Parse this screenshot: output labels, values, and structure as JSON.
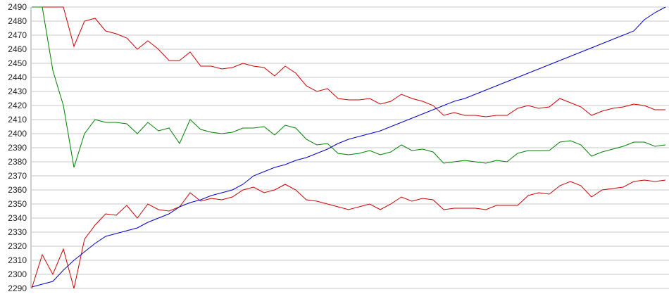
{
  "chart_data": {
    "type": "line",
    "title": "",
    "xlabel": "",
    "ylabel": "",
    "ylim": [
      2290,
      2490
    ],
    "yticks": [
      2290,
      2300,
      2310,
      2320,
      2330,
      2340,
      2350,
      2360,
      2370,
      2380,
      2390,
      2400,
      2410,
      2420,
      2430,
      2440,
      2450,
      2460,
      2470,
      2480,
      2490
    ],
    "grid": true,
    "x": [
      0,
      1,
      2,
      3,
      4,
      5,
      6,
      7,
      8,
      9,
      10,
      11,
      12,
      13,
      14,
      15,
      16,
      17,
      18,
      19,
      20,
      21,
      22,
      23,
      24,
      25,
      26,
      27,
      28,
      29,
      30,
      31,
      32,
      33,
      34,
      35,
      36,
      37,
      38,
      39,
      40,
      41,
      42,
      43,
      44,
      45,
      46,
      47,
      48,
      49,
      50,
      51,
      52,
      53,
      54,
      55,
      56,
      57,
      58,
      59,
      60
    ],
    "series": [
      {
        "color": "#cc0000",
        "values": [
          2490,
          2490,
          2490,
          2490,
          2462,
          2480,
          2482,
          2473,
          2471,
          2468,
          2460,
          2466,
          2460,
          2452,
          2452,
          2458,
          2448,
          2448,
          2446,
          2447,
          2450,
          2448,
          2447,
          2441,
          2448,
          2443,
          2434,
          2430,
          2432,
          2425,
          2424,
          2424,
          2425,
          2421,
          2423,
          2428,
          2425,
          2423,
          2420,
          2413,
          2415,
          2413,
          2413,
          2412,
          2413,
          2413,
          2418,
          2420,
          2418,
          2419,
          2425,
          2422,
          2419,
          2413,
          2416,
          2418,
          2419,
          2421,
          2420,
          2417,
          2417
        ]
      },
      {
        "color": "#008000",
        "values": [
          2490,
          2490,
          2445,
          2420,
          2376,
          2400,
          2410,
          2408,
          2408,
          2407,
          2400,
          2408,
          2402,
          2404,
          2393,
          2410,
          2403,
          2401,
          2400,
          2401,
          2404,
          2404,
          2405,
          2399,
          2406,
          2404,
          2396,
          2392,
          2393,
          2386,
          2385,
          2386,
          2388,
          2385,
          2387,
          2392,
          2388,
          2389,
          2387,
          2379,
          2380,
          2381,
          2380,
          2379,
          2381,
          2380,
          2386,
          2388,
          2388,
          2388,
          2394,
          2395,
          2392,
          2384,
          2387,
          2389,
          2391,
          2394,
          2394,
          2391,
          2392
        ]
      },
      {
        "color": "#cc0000",
        "values": [
          2290,
          2314,
          2300,
          2318,
          2290,
          2325,
          2335,
          2343,
          2342,
          2349,
          2340,
          2350,
          2346,
          2345,
          2348,
          2358,
          2352,
          2354,
          2353,
          2355,
          2360,
          2362,
          2358,
          2360,
          2364,
          2360,
          2353,
          2352,
          2350,
          2348,
          2346,
          2348,
          2350,
          2346,
          2350,
          2355,
          2352,
          2354,
          2353,
          2346,
          2347,
          2347,
          2347,
          2346,
          2349,
          2349,
          2349,
          2356,
          2358,
          2357,
          2363,
          2366,
          2363,
          2355,
          2360,
          2361,
          2362,
          2366,
          2367,
          2366,
          2367
        ]
      },
      {
        "color": "#0000cc",
        "values": [
          2291,
          2293,
          2295,
          2303,
          2310,
          2316,
          2322,
          2327,
          2329,
          2331,
          2333,
          2337,
          2340,
          2343,
          2348,
          2351,
          2353,
          2356,
          2358,
          2360,
          2364,
          2370,
          2373,
          2376,
          2378,
          2381,
          2383,
          2386,
          2389,
          2393,
          2396,
          2398,
          2400,
          2402,
          2405,
          2408,
          2411,
          2414,
          2417,
          2420,
          2423,
          2425,
          2428,
          2431,
          2434,
          2437,
          2440,
          2443,
          2446,
          2449,
          2452,
          2455,
          2458,
          2461,
          2464,
          2467,
          2470,
          2473,
          2481,
          2486,
          2490
        ]
      }
    ]
  }
}
